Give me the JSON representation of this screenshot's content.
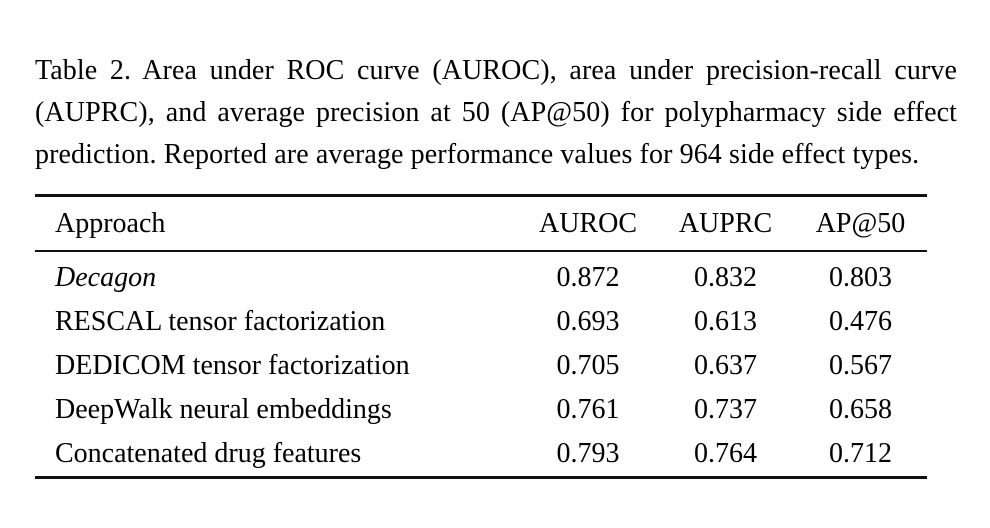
{
  "page": {
    "background": "#ffffff",
    "text_color": "#000000",
    "rule_color": "#111111"
  },
  "caption": "Table 2. Area under ROC curve (AUROC), area under precision-recall curve (AUPRC), and average precision at 50 (AP@50) for polypharmacy side effect prediction. Reported are average performance values for 964 side effect types.",
  "chart_data": {
    "type": "table",
    "title": "Table 2",
    "columns": [
      "Approach",
      "AUROC",
      "AUPRC",
      "AP@50"
    ],
    "rows": [
      {
        "approach": "Decagon",
        "auroc": "0.872",
        "auprc": "0.832",
        "ap50": "0.803"
      },
      {
        "approach": "RESCAL tensor factorization",
        "auroc": "0.693",
        "auprc": "0.613",
        "ap50": "0.476"
      },
      {
        "approach": "DEDICOM tensor factorization",
        "auroc": "0.705",
        "auprc": "0.637",
        "ap50": "0.567"
      },
      {
        "approach": "DeepWalk neural embeddings",
        "auroc": "0.761",
        "auprc": "0.737",
        "ap50": "0.658"
      },
      {
        "approach": "Concatenated drug features",
        "auroc": "0.793",
        "auprc": "0.764",
        "ap50": "0.712"
      }
    ]
  }
}
